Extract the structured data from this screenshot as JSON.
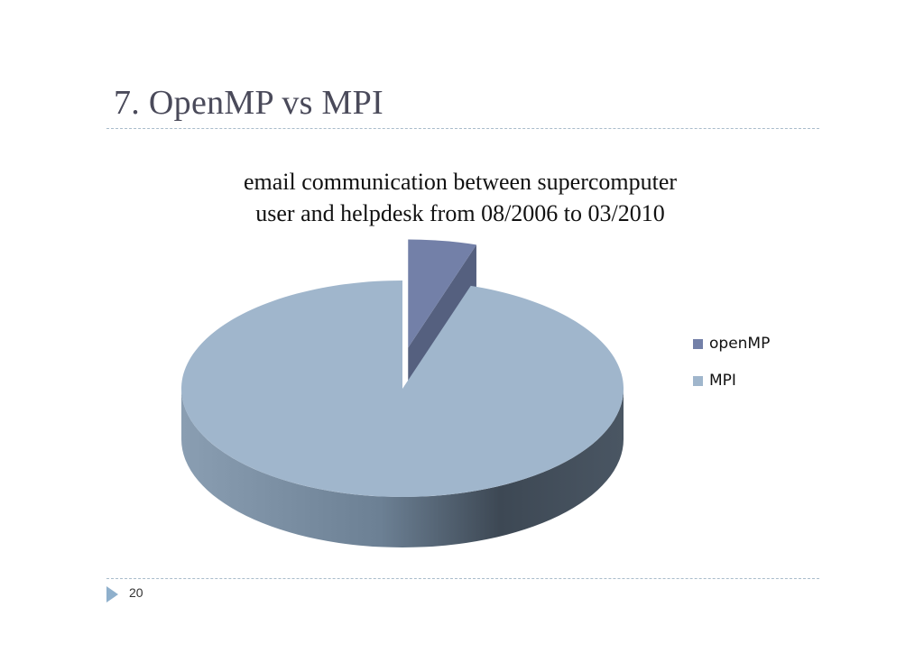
{
  "slide": {
    "title": "7. OpenMP vs MPI",
    "page_number": "20"
  },
  "chart_data": {
    "type": "pie",
    "title_lines": [
      "email communication between supercomputer",
      "user and helpdesk from 08/2006 to 03/2010"
    ],
    "categories": [
      "openMP",
      "MPI"
    ],
    "values": [
      5,
      95
    ],
    "exploded": [
      "openMP"
    ],
    "three_d": true,
    "legend_position": "right",
    "colors": {
      "openMP": "#7380a8",
      "MPI": "#a0b6cc"
    }
  }
}
